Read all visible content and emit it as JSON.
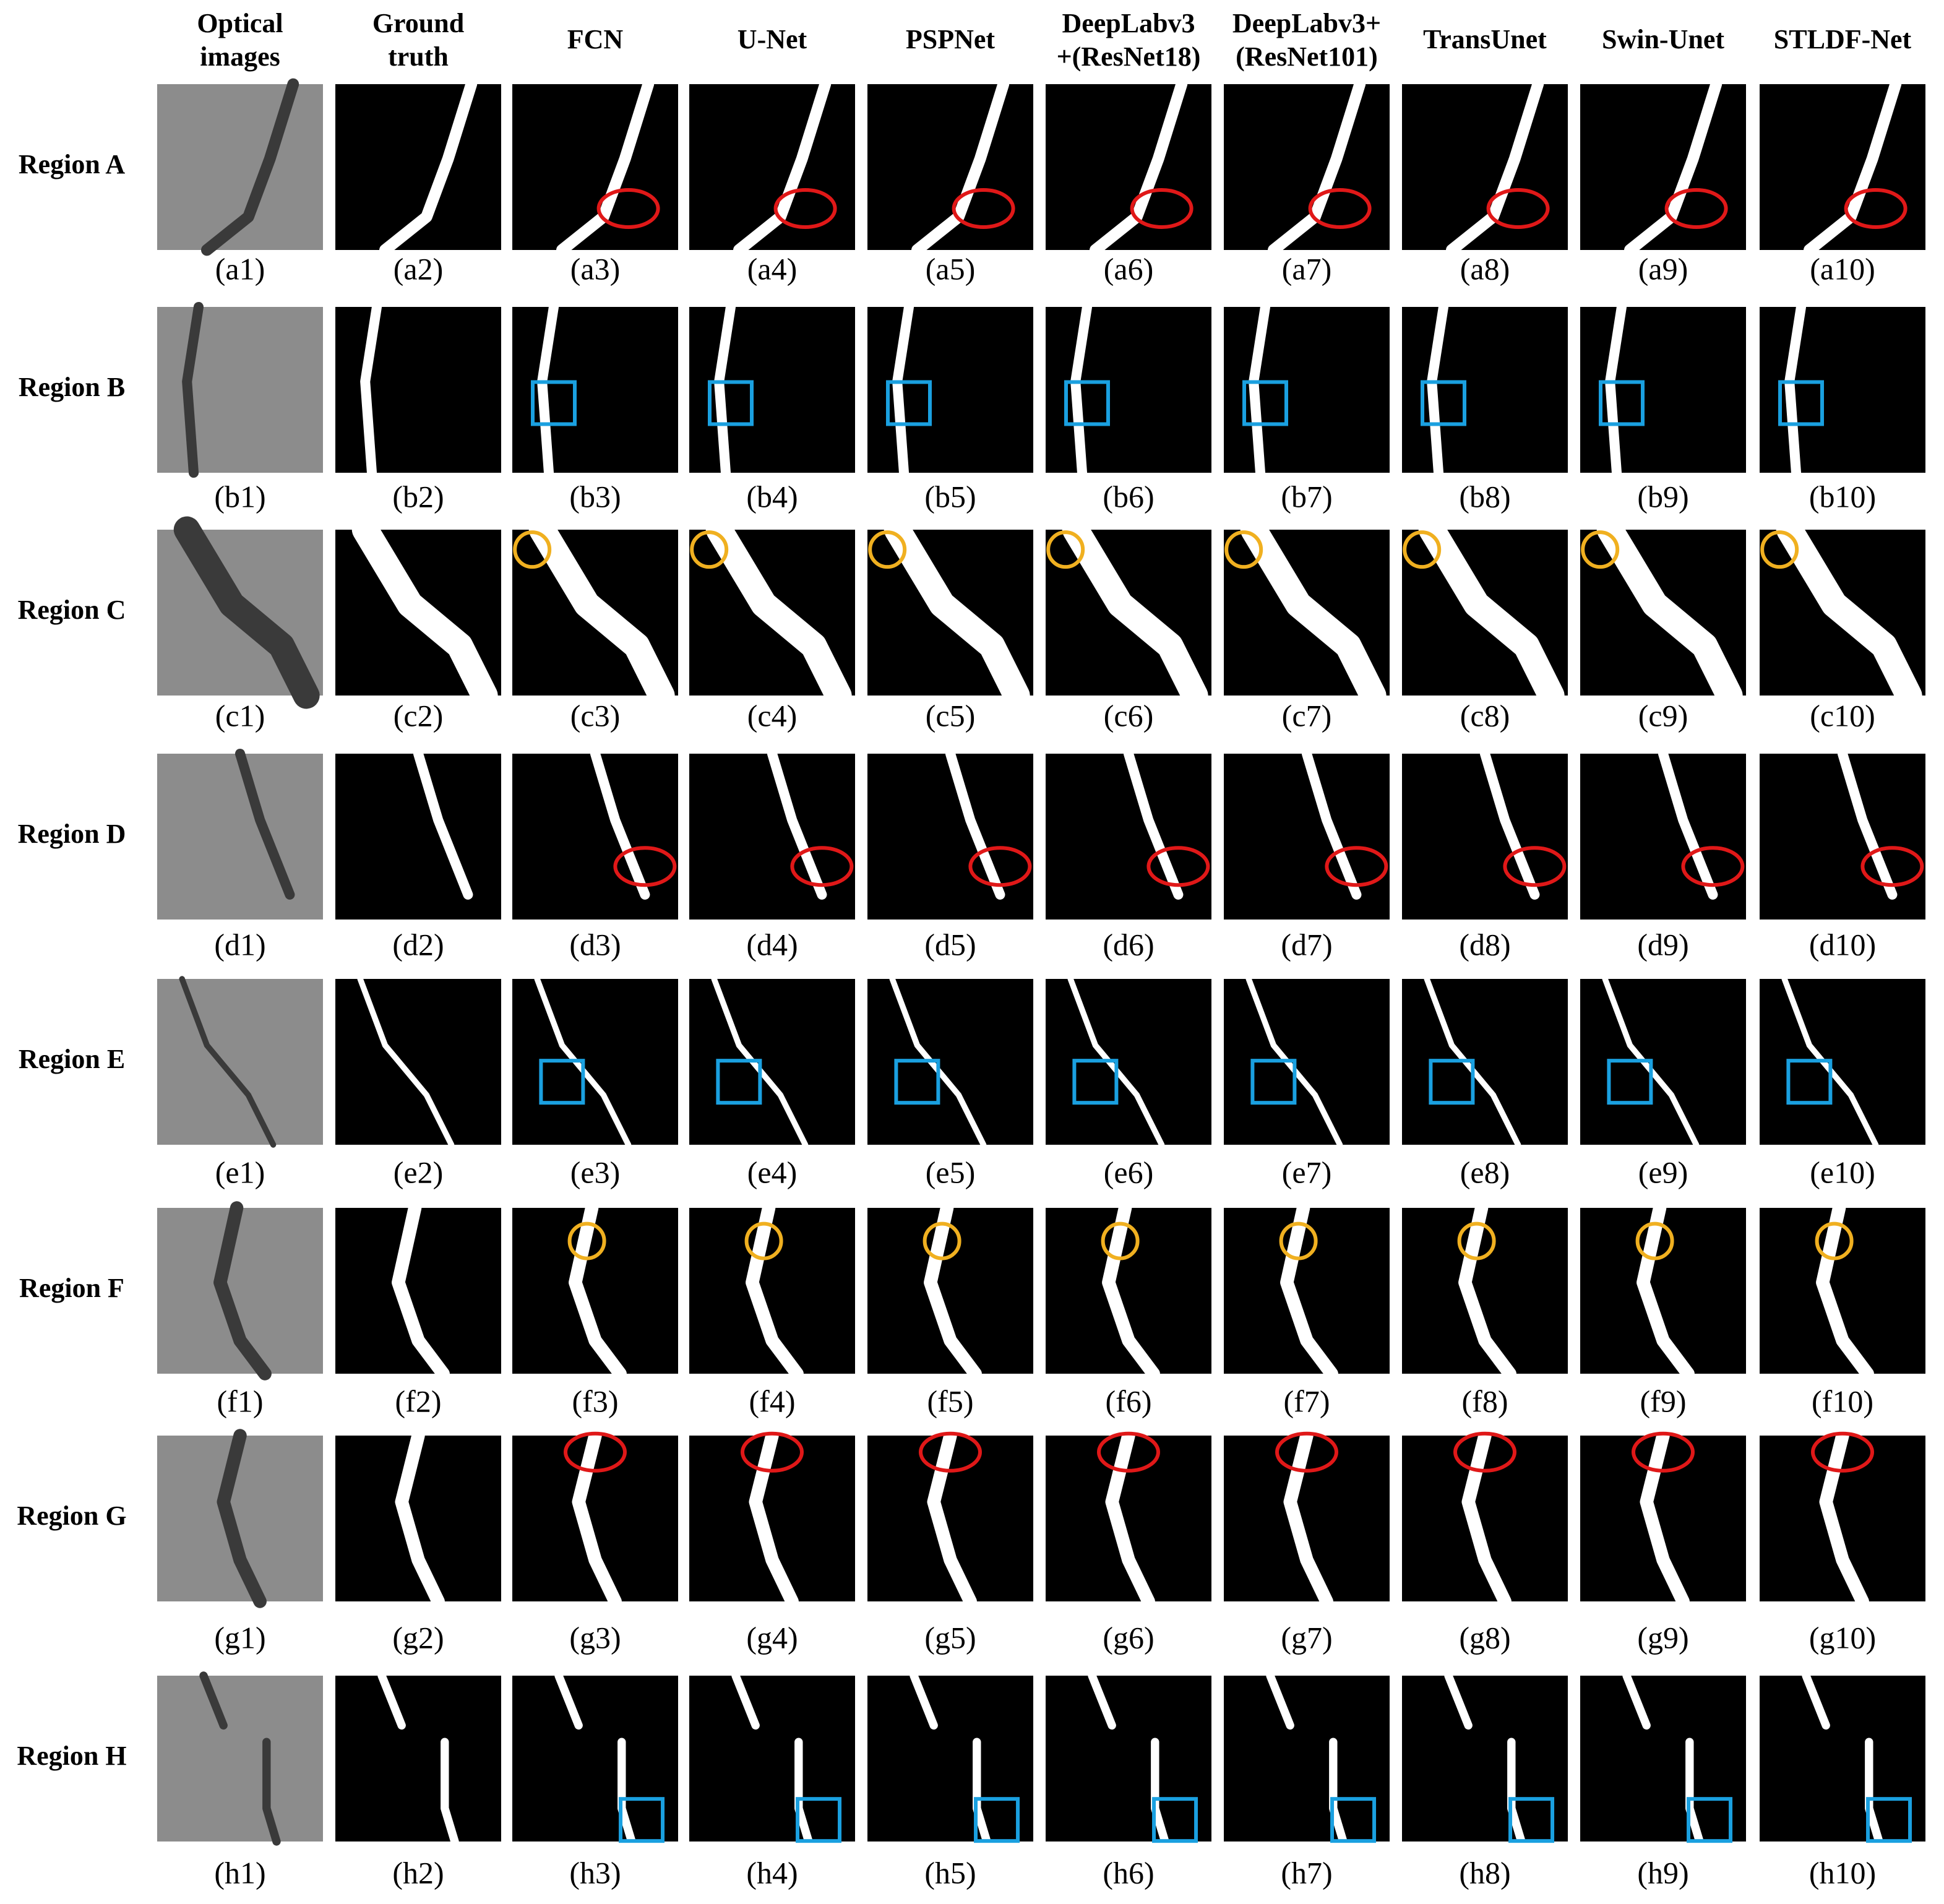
{
  "header": {
    "columns": [
      [
        "Optical",
        "images"
      ],
      [
        "Ground",
        "truth"
      ],
      [
        "FCN"
      ],
      [
        "U-Net"
      ],
      [
        "PSPNet"
      ],
      [
        "DeepLabv3",
        "+(ResNet18)"
      ],
      [
        "DeepLabv3+",
        "(ResNet101)"
      ],
      [
        "TransUnet"
      ],
      [
        "Swin-Unet"
      ],
      [
        "STLDF-Net"
      ]
    ]
  },
  "rows": [
    {
      "label": "Region A",
      "captions": [
        "(a1)",
        "(a2)",
        "(a3)",
        "(a4)",
        "(a5)",
        "(a6)",
        "(a7)",
        "(a8)",
        "(a9)",
        "(a10)"
      ]
    },
    {
      "label": "Region B",
      "captions": [
        "(b1)",
        "(b2)",
        "(b3)",
        "(b4)",
        "(b5)",
        "(b6)",
        "(b7)",
        "(b8)",
        "(b9)",
        "(b10)"
      ]
    },
    {
      "label": "Region C",
      "captions": [
        "(c1)",
        "(c2)",
        "(c3)",
        "(c4)",
        "(c5)",
        "(c6)",
        "(c7)",
        "(c8)",
        "(c9)",
        "(c10)"
      ]
    },
    {
      "label": "Region D",
      "captions": [
        "(d1)",
        "(d2)",
        "(d3)",
        "(d4)",
        "(d5)",
        "(d6)",
        "(d7)",
        "(d8)",
        "(d9)",
        "(d10)"
      ]
    },
    {
      "label": "Region E",
      "captions": [
        "(e1)",
        "(e2)",
        "(e3)",
        "(e4)",
        "(e5)",
        "(e6)",
        "(e7)",
        "(e8)",
        "(e9)",
        "(e10)"
      ]
    },
    {
      "label": "Region F",
      "captions": [
        "(f1)",
        "(f2)",
        "(f3)",
        "(f4)",
        "(f5)",
        "(f6)",
        "(f7)",
        "(f8)",
        "(f9)",
        "(f10)"
      ]
    },
    {
      "label": "Region G",
      "captions": [
        "(g1)",
        "(g2)",
        "(g3)",
        "(g4)",
        "(g5)",
        "(g6)",
        "(g7)",
        "(g8)",
        "(g9)",
        "(g10)"
      ]
    },
    {
      "label": "Region H",
      "captions": [
        "(h1)",
        "(h2)",
        "(h3)",
        "(h4)",
        "(h5)",
        "(h6)",
        "(h7)",
        "(h8)",
        "(h9)",
        "(h10)"
      ]
    }
  ]
}
